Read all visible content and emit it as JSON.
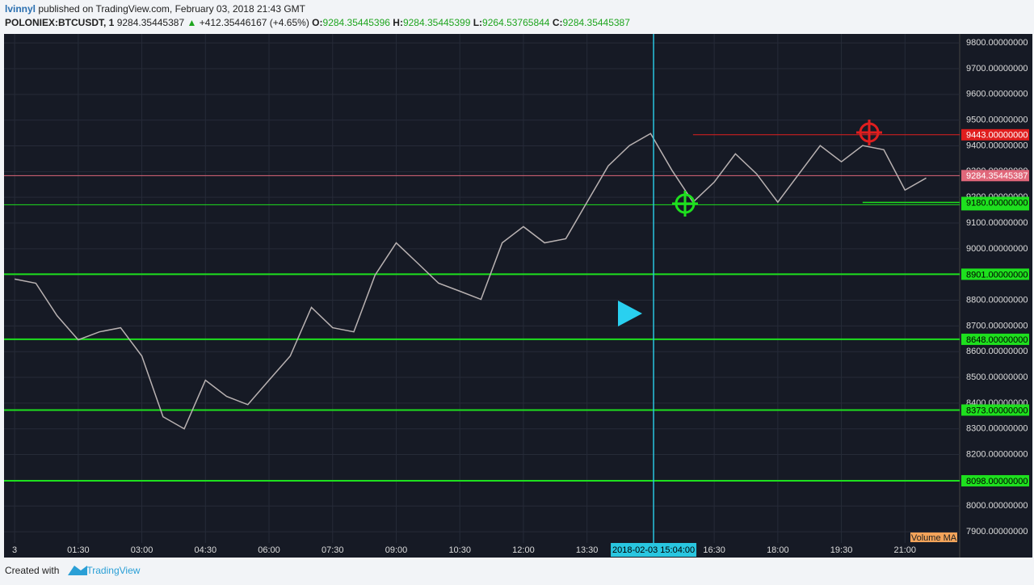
{
  "header": {
    "author": "lvinnyl",
    "published": "published on TradingView.com, February 03, 2018 21:43 GMT",
    "symbol": "POLONIEX:BTCUSDT, 1",
    "last": "9284.35445387",
    "arrow": "▲",
    "change": "+412.35446167 (+4.65%)",
    "o_label": "O:",
    "o": "9284.35445396",
    "h_label": "H:",
    "h": "9284.35445399",
    "l_label": "L:",
    "l": "9264.53765844",
    "c_label": "C:",
    "c": "9284.35445387"
  },
  "footer": {
    "created": "Created with",
    "brand": "TradingView"
  },
  "chart_data": {
    "type": "line",
    "color": "#b9b2b2",
    "x": [
      0,
      0.5,
      1,
      1.5,
      2,
      2.5,
      3,
      3.5,
      4,
      4.5,
      5,
      5.5,
      6,
      6.5,
      7,
      7.5,
      8,
      8.5,
      9,
      9.5,
      10,
      10.5,
      11,
      11.5,
      12,
      12.5,
      13,
      13.5,
      14,
      14.5,
      15,
      15.5,
      16,
      16.5,
      17,
      17.5,
      18,
      18.5,
      19,
      19.5,
      20,
      20.5,
      21,
      21.5
    ],
    "values": [
      8882,
      8866,
      8740,
      8646,
      8677,
      8693,
      8583,
      8347,
      8300,
      8489,
      8426,
      8394,
      8489,
      8583,
      8772,
      8693,
      8677,
      8897,
      9023,
      8945,
      8866,
      8835,
      8803,
      9023,
      9086,
      9023,
      9039,
      9181,
      9322,
      9401,
      9448,
      9306,
      9181,
      9259,
      9369,
      9291,
      9181,
      9291,
      9401,
      9338,
      9401,
      9385,
      9228,
      9275
    ],
    "xlim": [
      -0.25,
      22.29
    ],
    "ylim": [
      7806,
      9835
    ],
    "xticks": [
      {
        "value": 0,
        "label": "3"
      },
      {
        "value": 1.5,
        "label": "01:30"
      },
      {
        "value": 3,
        "label": "03:00"
      },
      {
        "value": 4.5,
        "label": "04:30"
      },
      {
        "value": 6,
        "label": "06:00"
      },
      {
        "value": 7.5,
        "label": "07:30"
      },
      {
        "value": 9,
        "label": "09:00"
      },
      {
        "value": 10.5,
        "label": "10:30"
      },
      {
        "value": 12,
        "label": "12:00"
      },
      {
        "value": 13.5,
        "label": "13:30"
      },
      {
        "value": 16.5,
        "label": "16:30"
      },
      {
        "value": 18,
        "label": "18:00"
      },
      {
        "value": 19.5,
        "label": "19:30"
      },
      {
        "value": 21,
        "label": "21:00"
      }
    ],
    "yticks": [
      {
        "value": 7900,
        "label": "7900.00000000"
      },
      {
        "value": 8000,
        "label": "8000.00000000"
      },
      {
        "value": 8100,
        "label": "8100.00000000"
      },
      {
        "value": 8200,
        "label": "8200.00000000"
      },
      {
        "value": 8300,
        "label": "8300.00000000"
      },
      {
        "value": 8400,
        "label": "8400.00000000"
      },
      {
        "value": 8500,
        "label": "8500.00000000"
      },
      {
        "value": 8600,
        "label": "8600.00000000"
      },
      {
        "value": 8700,
        "label": "8700.00000000"
      },
      {
        "value": 8800,
        "label": "8800.00000000"
      },
      {
        "value": 9000,
        "label": "9000.00000000"
      },
      {
        "value": 9100,
        "label": "9100.00000000"
      },
      {
        "value": 9200,
        "label": "9200.00000000"
      },
      {
        "value": 9300,
        "label": "9300.00000000"
      },
      {
        "value": 9400,
        "label": "9400.00000000"
      },
      {
        "value": 9500,
        "label": "9500.00000000"
      },
      {
        "value": 9600,
        "label": "9600.00000000"
      },
      {
        "value": 9700,
        "label": "9700.00000000"
      },
      {
        "value": 9800,
        "label": "9800.00000000"
      }
    ],
    "grid": true,
    "levels": [
      {
        "value": 8901,
        "label": "8901.00000000",
        "color": "#1ee01e",
        "width": 2
      },
      {
        "value": 8648,
        "label": "8648.00000000",
        "color": "#1ee01e",
        "width": 2
      },
      {
        "value": 8373,
        "label": "8373.00000000",
        "color": "#1ee01e",
        "width": 2
      },
      {
        "value": 8098,
        "label": "8098.00000000",
        "color": "#1ee01e",
        "width": 2
      },
      {
        "value": 9171,
        "label": "9171.00000000",
        "color": "#1ee01e",
        "width": 1
      },
      {
        "value": 9180,
        "label": "9180.00000000",
        "color": "#1ee01e",
        "width": 1.5,
        "from": 20
      },
      {
        "value": 9443,
        "label": "9443.00000000",
        "color": "#e01e1e",
        "width": 1,
        "from": 16
      },
      {
        "value": 9284.35445387,
        "label": "9284.35445387",
        "color": "#e0677a",
        "width": 1
      }
    ],
    "crosshair": {
      "value": 15.07,
      "label": "2018-02-03 15:04:00"
    },
    "volume_label": "Volume MA"
  }
}
